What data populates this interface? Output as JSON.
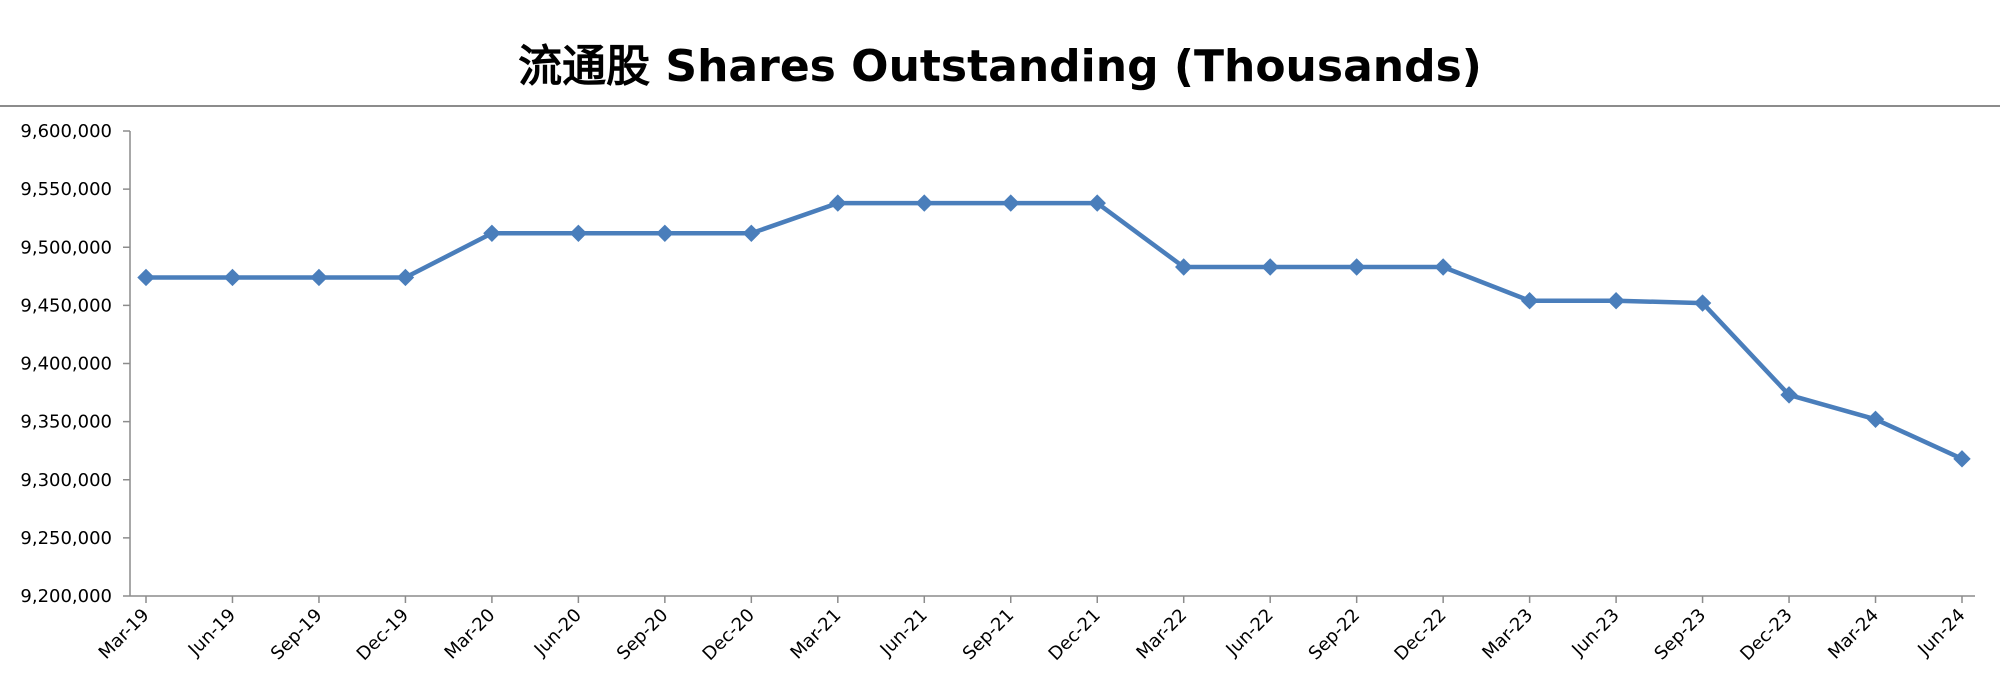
{
  "chart_data": {
    "type": "line",
    "title": "流通股 Shares Outstanding (Thousands)",
    "xlabel": "",
    "ylabel": "",
    "ylim": [
      9200000,
      9600000
    ],
    "yticks": [
      "9,200,000",
      "9,250,000",
      "9,300,000",
      "9,350,000",
      "9,400,000",
      "9,450,000",
      "9,500,000",
      "9,550,000",
      "9,600,000"
    ],
    "yticks_values": [
      9200000,
      9250000,
      9300000,
      9350000,
      9400000,
      9450000,
      9500000,
      9550000,
      9600000
    ],
    "categories": [
      "Mar-19",
      "Jun-19",
      "Sep-19",
      "Dec-19",
      "Mar-20",
      "Jun-20",
      "Sep-20",
      "Dec-20",
      "Mar-21",
      "Jun-21",
      "Sep-21",
      "Dec-21",
      "Mar-22",
      "Jun-22",
      "Sep-22",
      "Dec-22",
      "Mar-23",
      "Jun-23",
      "Sep-23",
      "Dec-23",
      "Mar-24",
      "Jun-24"
    ],
    "series": [
      {
        "values": [
          9474000,
          9474000,
          9474000,
          9474000,
          9512000,
          9512000,
          9512000,
          9512000,
          9538000,
          9538000,
          9538000,
          9538000,
          9483000,
          9483000,
          9483000,
          9483000,
          9454000,
          9454000,
          9452000,
          9373000,
          9352000,
          9318000
        ],
        "color": "#4a7ebb",
        "marker": "diamond"
      }
    ],
    "grid": false,
    "legend": "none"
  }
}
